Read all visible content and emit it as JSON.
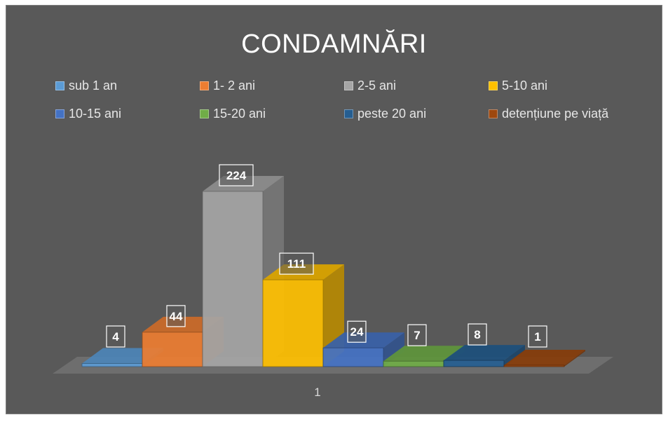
{
  "chart_data": {
    "type": "bar",
    "title": "CONDAMNĂRI",
    "categories": [
      "1"
    ],
    "series": [
      {
        "name": "sub 1 an",
        "values": [
          4
        ],
        "color": "#5b9bd5"
      },
      {
        "name": "1- 2 ani",
        "values": [
          44
        ],
        "color": "#ed7d31"
      },
      {
        "name": "2-5 ani",
        "values": [
          224
        ],
        "color": "#a5a5a5"
      },
      {
        "name": "5-10 ani",
        "values": [
          111
        ],
        "color": "#ffc000"
      },
      {
        "name": "10-15 ani",
        "values": [
          24
        ],
        "color": "#4472c4"
      },
      {
        "name": "15-20 ani",
        "values": [
          7
        ],
        "color": "#70ad47"
      },
      {
        "name": "peste 20 ani",
        "values": [
          8
        ],
        "color": "#255e91"
      },
      {
        "name": "detențiune pe viață",
        "values": [
          1
        ],
        "color": "#9e480e"
      }
    ],
    "ylim": [
      0,
      224
    ],
    "grid": false,
    "legend_position": "top",
    "style": "3d-clustered-column",
    "background": "#595959"
  }
}
